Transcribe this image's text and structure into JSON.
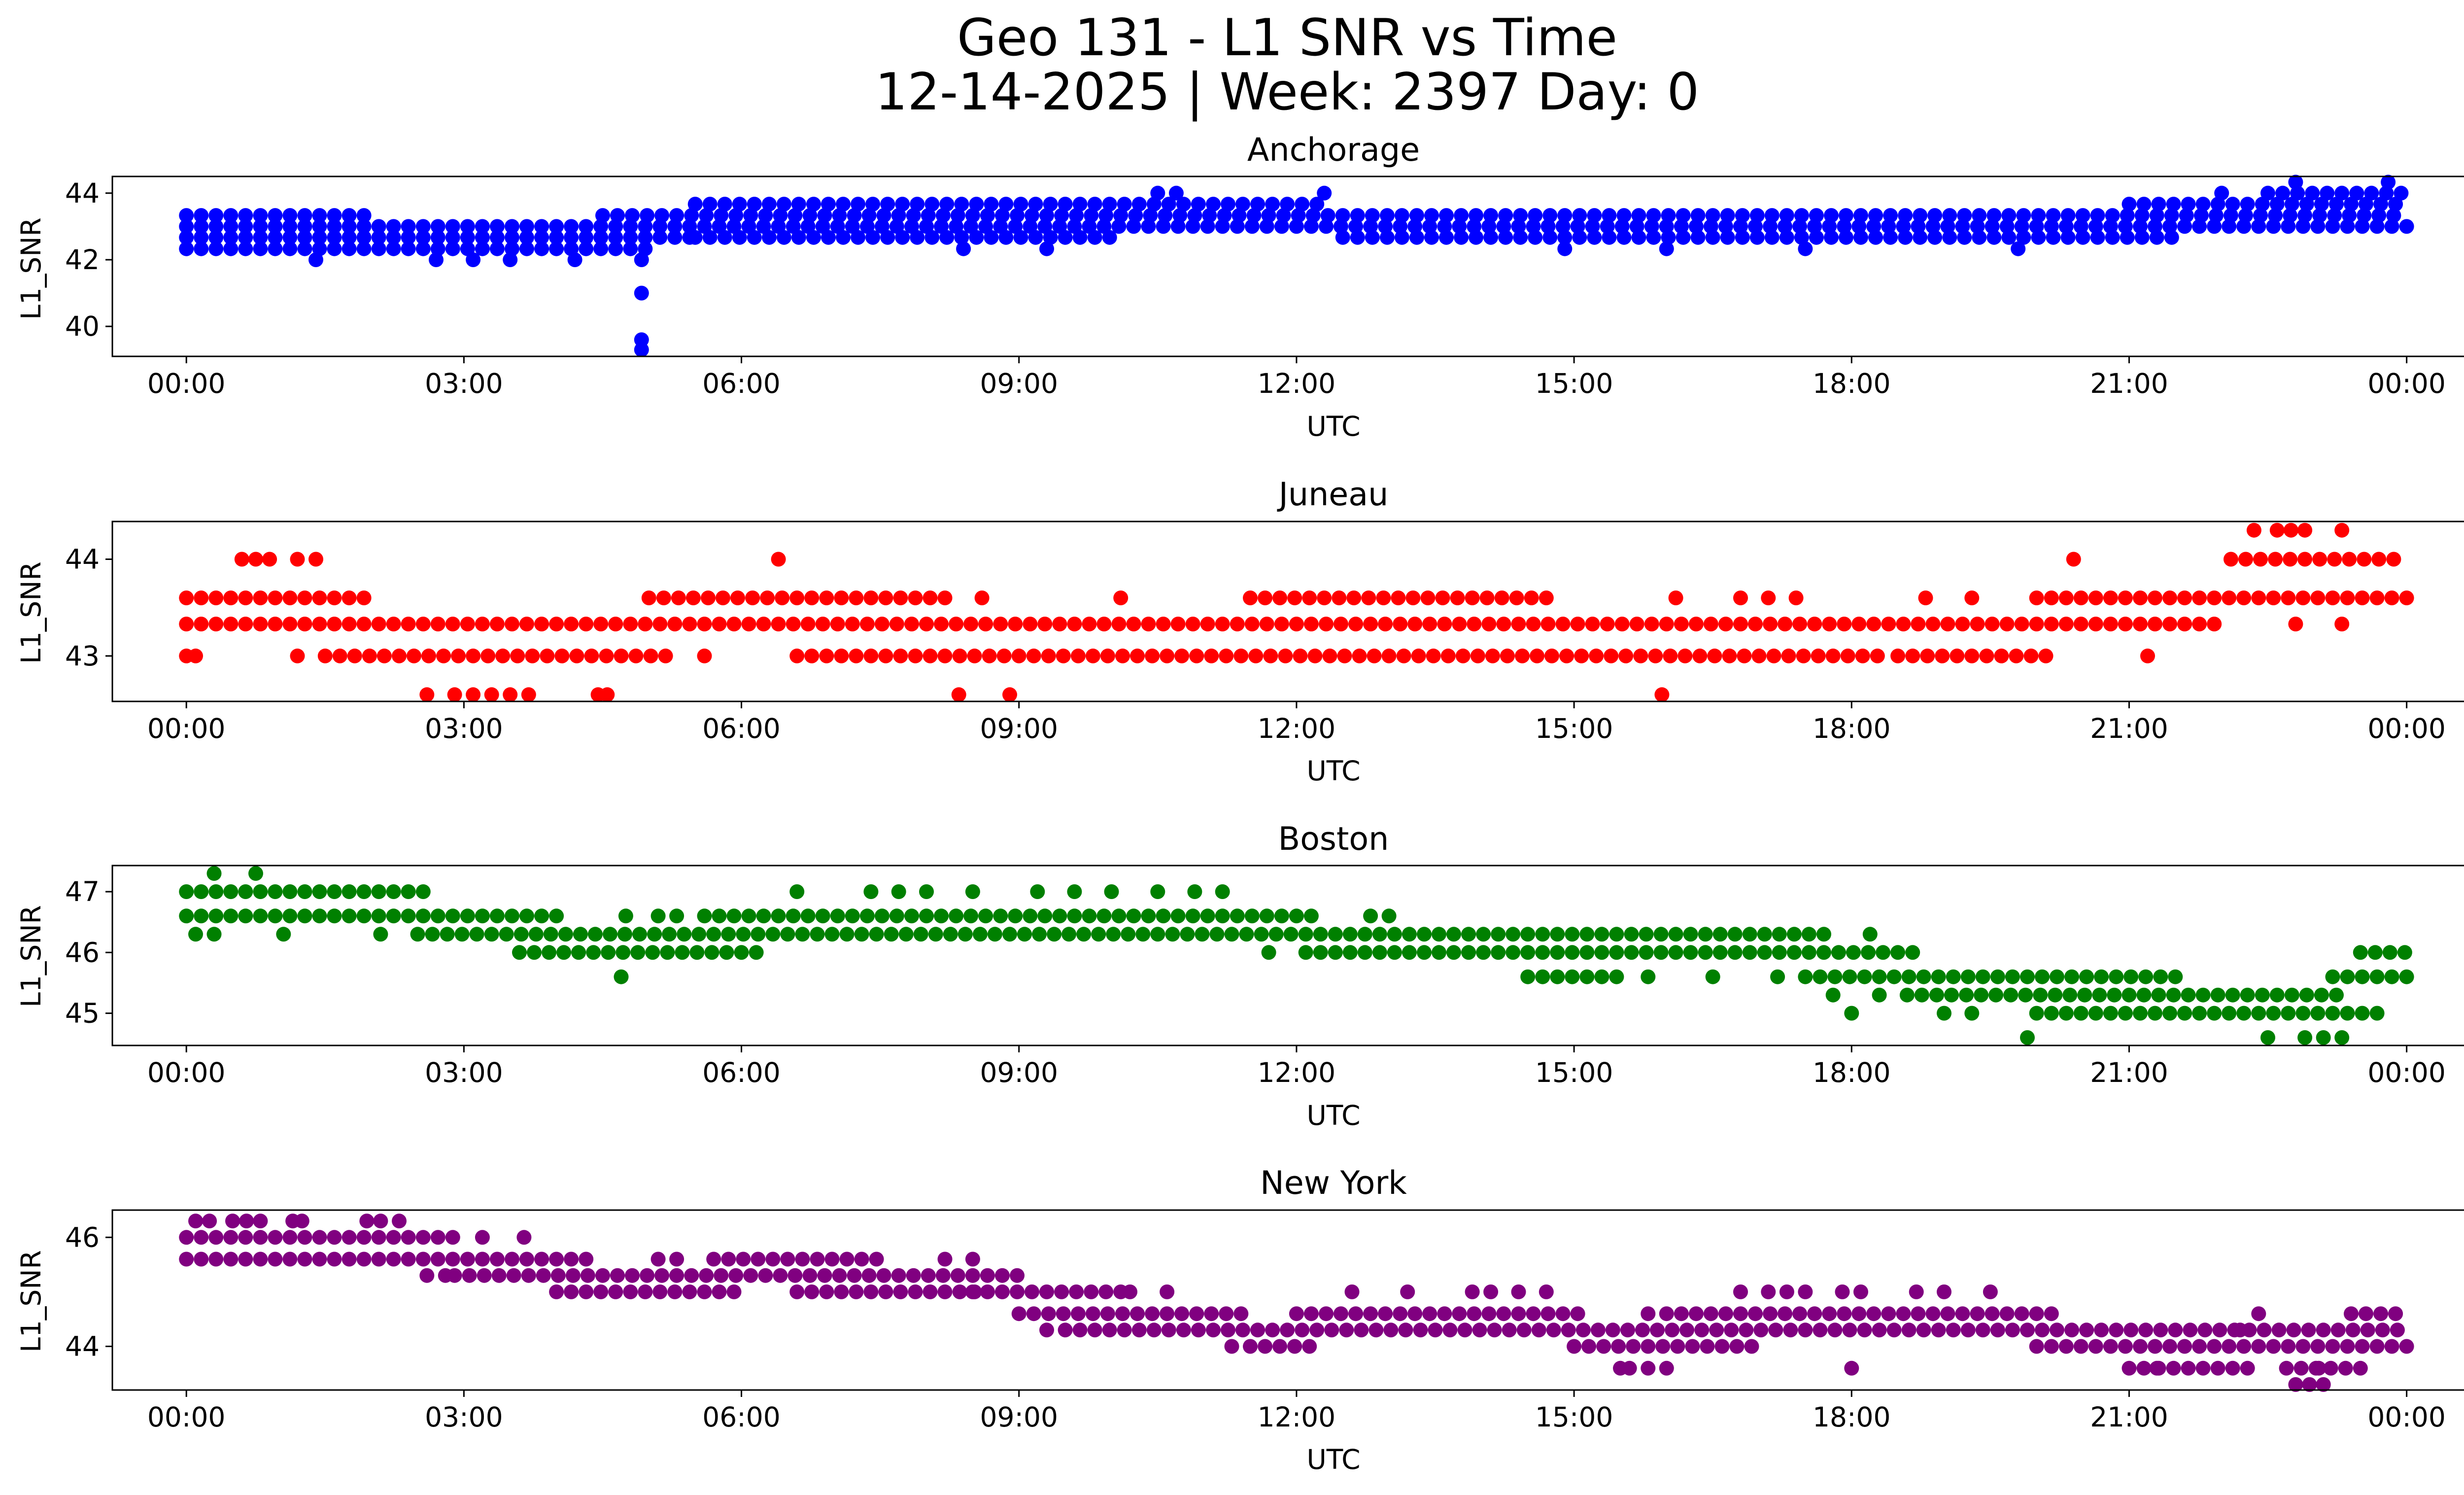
{
  "figure": {
    "title_line1": "Geo 131 - L1 SNR vs Time",
    "title_line2": "12-14-2025 | Week: 2397 Day: 0"
  },
  "chart_data": [
    {
      "type": "scatter",
      "title": "Anchorage",
      "xlabel": "UTC",
      "ylabel": "L1_SNR",
      "color": "#0000ff",
      "xlim_hours": [
        -0.8,
        25.6
      ],
      "ylim": [
        39.1,
        44.5
      ],
      "xticks": [
        "00:00",
        "03:00",
        "06:00",
        "09:00",
        "12:00",
        "15:00",
        "18:00",
        "21:00",
        "00:00"
      ],
      "yticks": [
        40,
        42,
        44
      ],
      "series": [
        {
          "name": "Anchorage L1 SNR",
          "level_step": 0.33,
          "bands": [
            {
              "y": 43.0,
              "from": 0.0,
              "to": 24.0
            },
            {
              "y": 42.67,
              "from": 0.0,
              "to": 5.5
            },
            {
              "y": 42.33,
              "from": 0.0,
              "to": 5.0
            },
            {
              "y": 43.33,
              "from": 0.0,
              "to": 2.0
            },
            {
              "y": 43.33,
              "from": 4.5,
              "to": 24.0
            },
            {
              "y": 42.67,
              "from": 5.5,
              "to": 10.0
            },
            {
              "y": 42.67,
              "from": 12.5,
              "to": 21.5
            },
            {
              "y": 43.67,
              "from": 5.5,
              "to": 12.3
            },
            {
              "y": 43.67,
              "from": 21.0,
              "to": 24.0
            },
            {
              "y": 44.0,
              "from": 22.5,
              "to": 24.0
            }
          ],
          "points": [
            [
              4.92,
              41.0
            ],
            [
              4.92,
              39.6
            ],
            [
              4.92,
              39.3
            ],
            [
              4.92,
              42.0
            ],
            [
              1.4,
              42.0
            ],
            [
              2.7,
              42.0
            ],
            [
              3.1,
              42.0
            ],
            [
              3.5,
              42.0
            ],
            [
              4.2,
              42.0
            ],
            [
              10.5,
              44.0
            ],
            [
              10.7,
              44.0
            ],
            [
              12.3,
              44.0
            ],
            [
              22.0,
              44.0
            ],
            [
              8.4,
              42.33
            ],
            [
              9.3,
              42.33
            ],
            [
              14.9,
              42.33
            ],
            [
              16.0,
              42.33
            ],
            [
              17.5,
              42.33
            ],
            [
              19.8,
              42.33
            ],
            [
              22.8,
              44.33
            ],
            [
              23.8,
              44.33
            ]
          ]
        }
      ]
    },
    {
      "type": "scatter",
      "title": "Juneau",
      "xlabel": "UTC",
      "ylabel": "L1_SNR",
      "color": "#ff0000",
      "xlim_hours": [
        -0.8,
        25.6
      ],
      "ylim": [
        42.53,
        44.39
      ],
      "xticks": [
        "00:00",
        "03:00",
        "06:00",
        "09:00",
        "12:00",
        "15:00",
        "18:00",
        "21:00",
        "00:00"
      ],
      "yticks": [
        43,
        44
      ],
      "series": [
        {
          "name": "Juneau L1 SNR",
          "level_step": 0.33,
          "bands": [
            {
              "y": 43.33,
              "from": 0.0,
              "to": 22.0
            },
            {
              "y": 43.6,
              "from": 0.0,
              "to": 2.0
            },
            {
              "y": 43.0,
              "from": 1.5,
              "to": 5.3
            },
            {
              "y": 43.6,
              "from": 5.0,
              "to": 8.3
            },
            {
              "y": 43.0,
              "from": 6.6,
              "to": 18.3
            },
            {
              "y": 43.6,
              "from": 11.5,
              "to": 14.8
            },
            {
              "y": 43.0,
              "from": 18.5,
              "to": 20.2
            },
            {
              "y": 43.6,
              "from": 20.0,
              "to": 24.0
            },
            {
              "y": 44.0,
              "from": 22.1,
              "to": 24.0
            }
          ],
          "points": [
            [
              0.0,
              43.0
            ],
            [
              0.1,
              43.0
            ],
            [
              1.2,
              43.0
            ],
            [
              5.6,
              43.0
            ],
            [
              21.2,
              43.0
            ],
            [
              0.6,
              44.0
            ],
            [
              0.75,
              44.0
            ],
            [
              0.9,
              44.0
            ],
            [
              1.2,
              44.0
            ],
            [
              1.4,
              44.0
            ],
            [
              6.4,
              44.0
            ],
            [
              20.4,
              44.0
            ],
            [
              2.6,
              42.6
            ],
            [
              2.9,
              42.6
            ],
            [
              3.1,
              42.6
            ],
            [
              3.3,
              42.6
            ],
            [
              3.5,
              42.6
            ],
            [
              3.7,
              42.6
            ],
            [
              4.45,
              42.6
            ],
            [
              4.55,
              42.6
            ],
            [
              8.35,
              42.6
            ],
            [
              8.9,
              42.6
            ],
            [
              15.95,
              42.6
            ],
            [
              22.35,
              44.3
            ],
            [
              22.6,
              44.3
            ],
            [
              22.75,
              44.3
            ],
            [
              22.9,
              44.3
            ],
            [
              23.3,
              44.3
            ],
            [
              22.8,
              43.33
            ],
            [
              23.3,
              43.33
            ],
            [
              8.6,
              43.6
            ],
            [
              10.1,
              43.6
            ],
            [
              16.1,
              43.6
            ],
            [
              16.8,
              43.6
            ],
            [
              17.1,
              43.6
            ],
            [
              17.4,
              43.6
            ],
            [
              18.8,
              43.6
            ],
            [
              19.3,
              43.6
            ]
          ]
        }
      ]
    },
    {
      "type": "scatter",
      "title": "Boston",
      "xlabel": "UTC",
      "ylabel": "L1_SNR",
      "color": "#008000",
      "xlim_hours": [
        -0.8,
        25.6
      ],
      "ylim": [
        44.47,
        47.43
      ],
      "xticks": [
        "00:00",
        "03:00",
        "06:00",
        "09:00",
        "12:00",
        "15:00",
        "18:00",
        "21:00",
        "00:00"
      ],
      "yticks": [
        45,
        46,
        47
      ],
      "series": [
        {
          "name": "Boston L1 SNR",
          "level_step": 0.33,
          "bands": [
            {
              "y": 47.0,
              "from": 0.0,
              "to": 2.6
            },
            {
              "y": 46.6,
              "from": 0.0,
              "to": 4.0
            },
            {
              "y": 46.3,
              "from": 2.5,
              "to": 17.8
            },
            {
              "y": 46.0,
              "from": 3.6,
              "to": 6.2
            },
            {
              "y": 46.6,
              "from": 5.6,
              "to": 12.3
            },
            {
              "y": 46.0,
              "from": 12.1,
              "to": 18.8
            },
            {
              "y": 45.6,
              "from": 14.5,
              "to": 15.5
            },
            {
              "y": 45.6,
              "from": 17.5,
              "to": 21.5
            },
            {
              "y": 45.3,
              "from": 18.6,
              "to": 23.3
            },
            {
              "y": 45.0,
              "from": 20.0,
              "to": 23.7
            },
            {
              "y": 45.6,
              "from": 23.2,
              "to": 24.0
            },
            {
              "y": 46.0,
              "from": 23.5,
              "to": 24.0
            }
          ],
          "points": [
            [
              0.3,
              47.3
            ],
            [
              0.75,
              47.3
            ],
            [
              0.1,
              46.3
            ],
            [
              0.3,
              46.3
            ],
            [
              1.05,
              46.3
            ],
            [
              2.1,
              46.3
            ],
            [
              4.7,
              45.6
            ],
            [
              4.75,
              46.6
            ],
            [
              5.1,
              46.6
            ],
            [
              5.3,
              46.6
            ],
            [
              6.6,
              47.0
            ],
            [
              7.4,
              47.0
            ],
            [
              7.7,
              47.0
            ],
            [
              8.0,
              47.0
            ],
            [
              8.5,
              47.0
            ],
            [
              9.2,
              47.0
            ],
            [
              9.6,
              47.0
            ],
            [
              10.0,
              47.0
            ],
            [
              10.5,
              47.0
            ],
            [
              10.9,
              47.0
            ],
            [
              11.2,
              47.0
            ],
            [
              11.7,
              46.0
            ],
            [
              12.8,
              46.6
            ],
            [
              13.0,
              46.6
            ],
            [
              15.8,
              45.6
            ],
            [
              16.5,
              45.6
            ],
            [
              17.2,
              45.6
            ],
            [
              17.8,
              45.3
            ],
            [
              18.3,
              45.3
            ],
            [
              18.0,
              45.0
            ],
            [
              18.2,
              46.3
            ],
            [
              19.0,
              45.0
            ],
            [
              19.3,
              45.0
            ],
            [
              19.9,
              44.6
            ],
            [
              22.5,
              44.6
            ],
            [
              22.9,
              44.6
            ],
            [
              23.1,
              44.6
            ],
            [
              23.3,
              44.6
            ]
          ]
        }
      ]
    },
    {
      "type": "scatter",
      "title": "New York",
      "xlabel": "UTC",
      "ylabel": "L1_SNR",
      "color": "#800080",
      "xlim_hours": [
        -0.8,
        25.6
      ],
      "ylim": [
        43.2,
        46.5
      ],
      "xticks": [
        "00:00",
        "03:00",
        "06:00",
        "09:00",
        "12:00",
        "15:00",
        "18:00",
        "21:00",
        "00:00"
      ],
      "yticks": [
        44,
        46
      ],
      "series": [
        {
          "name": "New York L1 SNR",
          "level_step": 0.33,
          "bands": [
            {
              "y": 46.0,
              "from": 0.0,
              "to": 2.9
            },
            {
              "y": 45.6,
              "from": 0.0,
              "to": 4.4
            },
            {
              "y": 45.3,
              "from": 2.9,
              "to": 9.1
            },
            {
              "y": 45.0,
              "from": 4.0,
              "to": 6.0
            },
            {
              "y": 45.0,
              "from": 6.6,
              "to": 8.6
            },
            {
              "y": 45.6,
              "from": 5.7,
              "to": 7.5
            },
            {
              "y": 45.0,
              "from": 8.5,
              "to": 10.1
            },
            {
              "y": 44.6,
              "from": 9.0,
              "to": 11.5
            },
            {
              "y": 44.3,
              "from": 9.5,
              "to": 24.0
            },
            {
              "y": 44.6,
              "from": 12.0,
              "to": 15.1
            },
            {
              "y": 44.6,
              "from": 16.0,
              "to": 20.3
            },
            {
              "y": 44.0,
              "from": 11.5,
              "to": 12.2
            },
            {
              "y": 44.0,
              "from": 15.0,
              "to": 17.0
            },
            {
              "y": 44.0,
              "from": 20.0,
              "to": 24.0
            },
            {
              "y": 43.6,
              "from": 21.0,
              "to": 22.3
            },
            {
              "y": 43.6,
              "from": 22.7,
              "to": 23.5
            },
            {
              "y": 44.6,
              "from": 23.4,
              "to": 24.0
            }
          ],
          "points": [
            [
              0.1,
              46.3
            ],
            [
              0.25,
              46.3
            ],
            [
              0.5,
              46.3
            ],
            [
              0.65,
              46.3
            ],
            [
              0.8,
              46.3
            ],
            [
              1.15,
              46.3
            ],
            [
              1.25,
              46.3
            ],
            [
              1.95,
              46.3
            ],
            [
              2.1,
              46.3
            ],
            [
              2.3,
              46.3
            ],
            [
              2.6,
              45.3
            ],
            [
              2.8,
              45.3
            ],
            [
              3.2,
              46.0
            ],
            [
              3.65,
              46.0
            ],
            [
              5.1,
              45.6
            ],
            [
              5.3,
              45.6
            ],
            [
              8.2,
              45.6
            ],
            [
              8.5,
              45.6
            ],
            [
              9.3,
              44.3
            ],
            [
              10.2,
              45.0
            ],
            [
              10.6,
              45.0
            ],
            [
              11.3,
              44.0
            ],
            [
              12.6,
              45.0
            ],
            [
              13.2,
              45.0
            ],
            [
              13.9,
              45.0
            ],
            [
              14.1,
              45.0
            ],
            [
              14.4,
              45.0
            ],
            [
              14.7,
              45.0
            ],
            [
              15.5,
              43.6
            ],
            [
              15.6,
              43.6
            ],
            [
              15.8,
              43.6
            ],
            [
              16.0,
              43.6
            ],
            [
              15.8,
              44.6
            ],
            [
              16.8,
              45.0
            ],
            [
              17.1,
              45.0
            ],
            [
              17.3,
              45.0
            ],
            [
              17.5,
              45.0
            ],
            [
              17.9,
              45.0
            ],
            [
              18.1,
              45.0
            ],
            [
              18.0,
              43.6
            ],
            [
              18.7,
              45.0
            ],
            [
              19.0,
              45.0
            ],
            [
              19.5,
              45.0
            ],
            [
              21.3,
              43.6
            ],
            [
              22.2,
              44.3
            ],
            [
              22.4,
              44.6
            ],
            [
              22.8,
              43.3
            ],
            [
              22.95,
              43.3
            ],
            [
              23.1,
              43.3
            ],
            [
              23.05,
              43.6
            ]
          ]
        }
      ]
    }
  ]
}
